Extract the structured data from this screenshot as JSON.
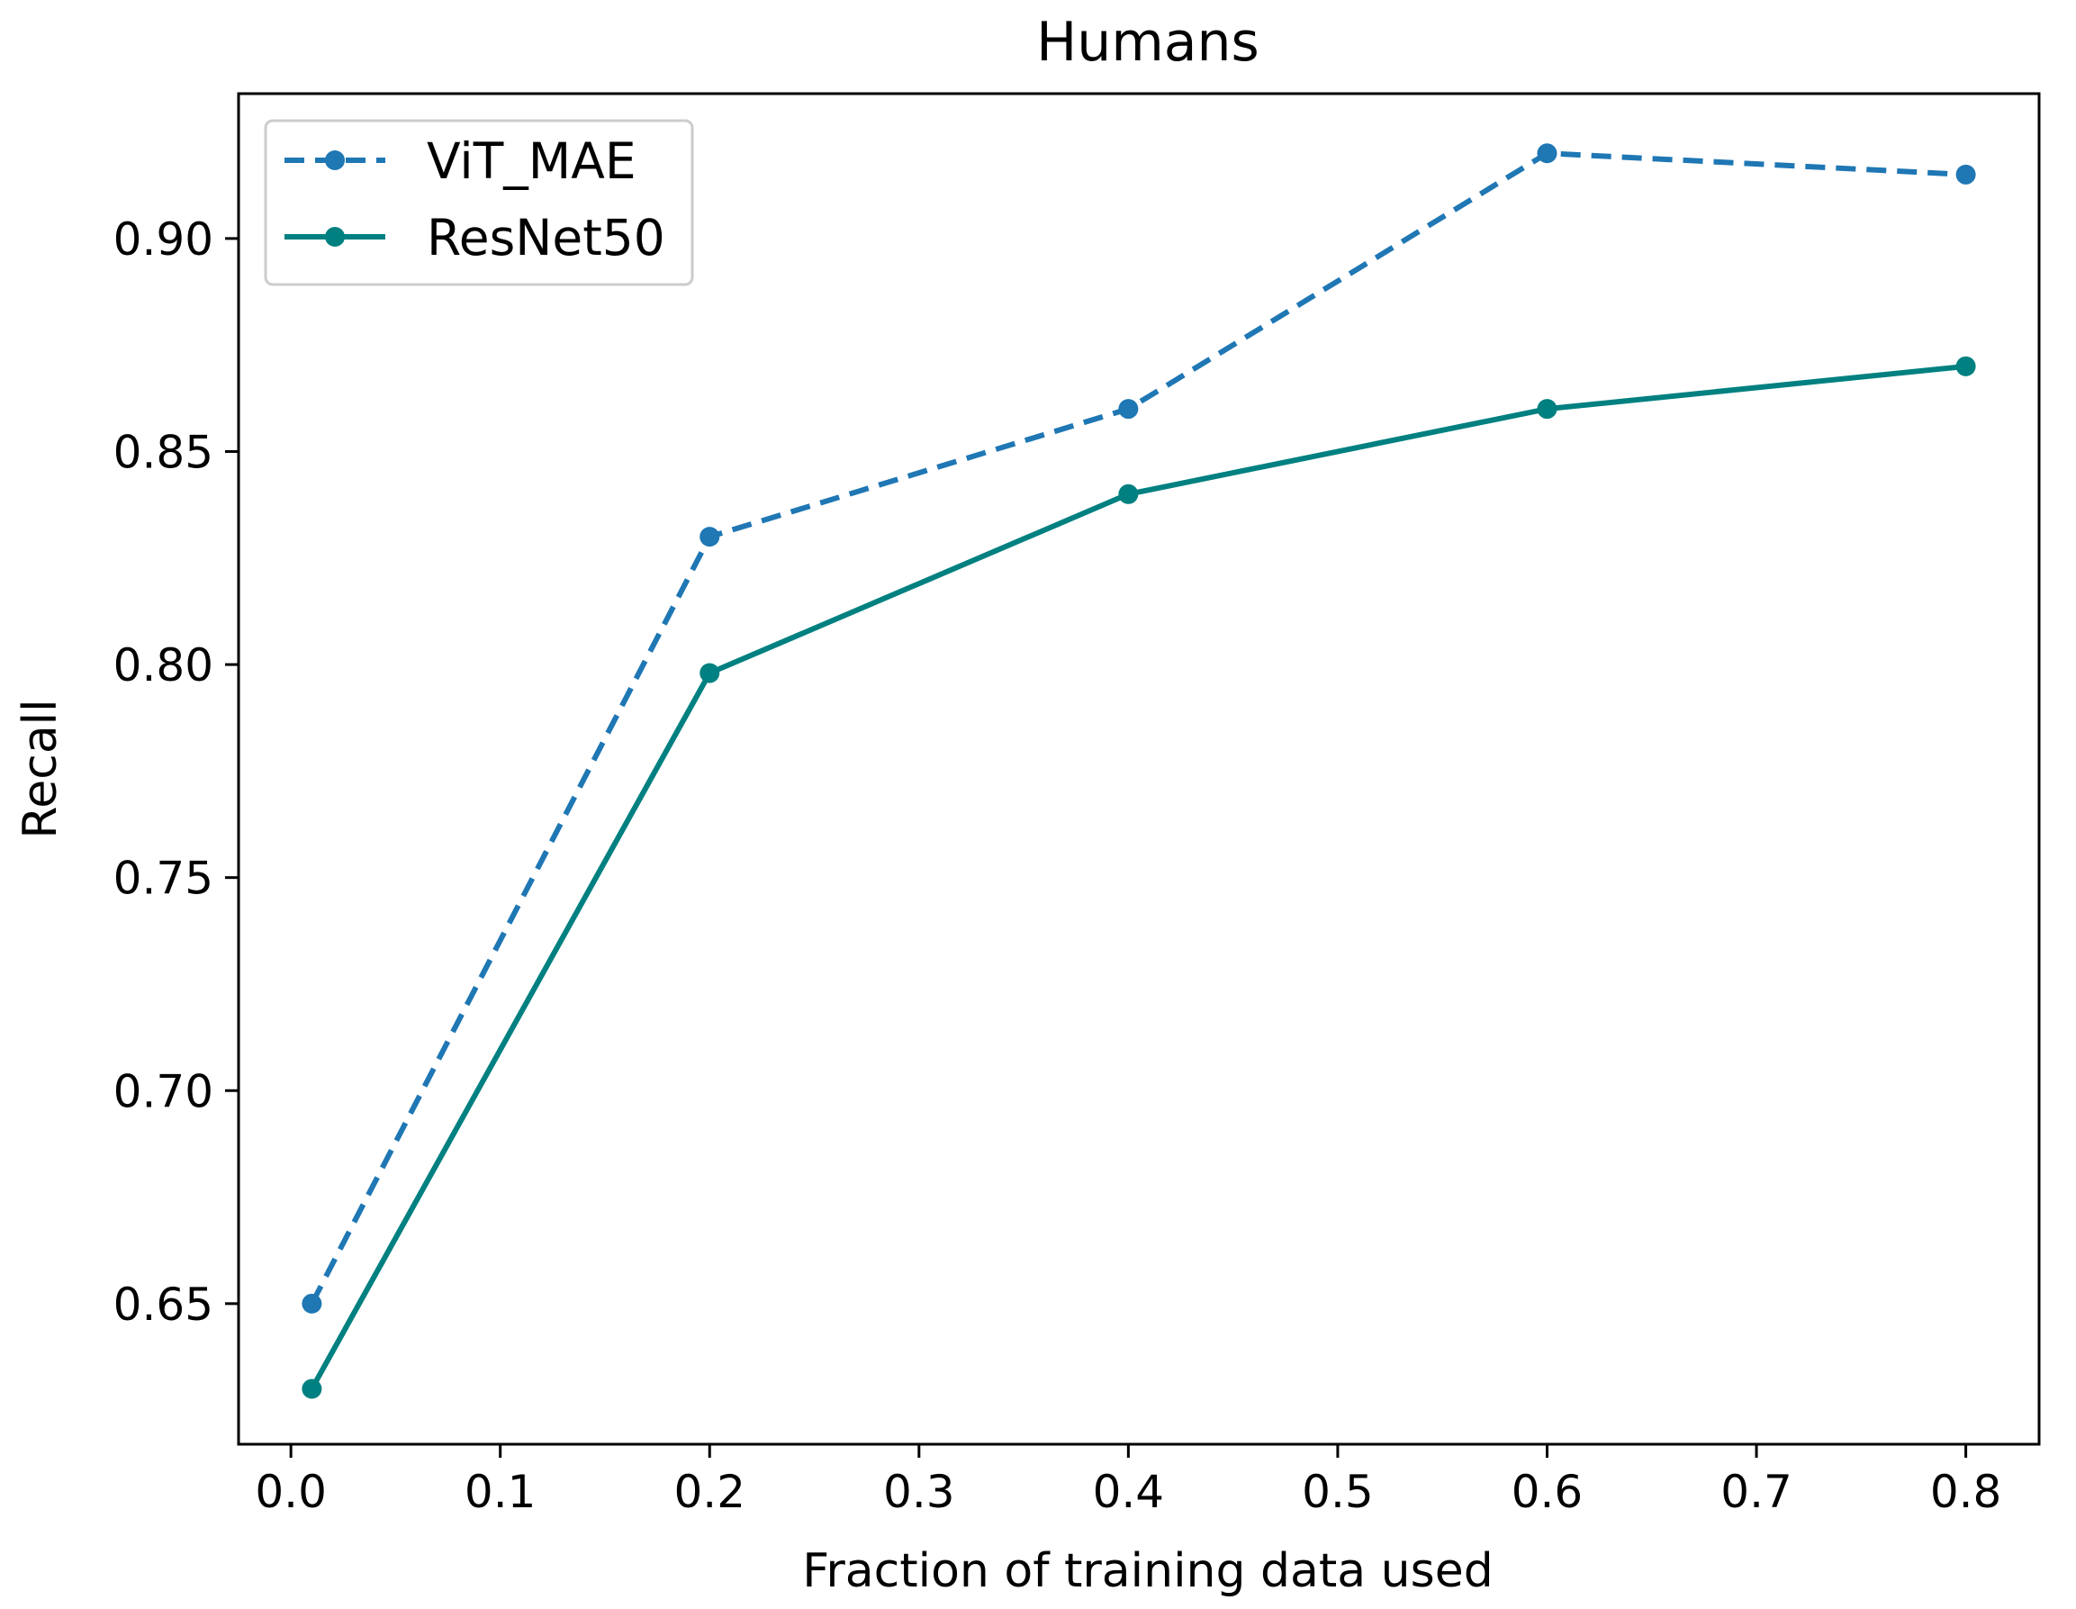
{
  "chart_data": {
    "type": "line",
    "title": "Humans",
    "xlabel": "Fraction of training data used",
    "ylabel": "Recall",
    "xlim": [
      -0.025,
      0.835
    ],
    "ylim": [
      0.617,
      0.934
    ],
    "xticks": [
      0.0,
      0.1,
      0.2,
      0.3,
      0.4,
      0.5,
      0.6,
      0.7,
      0.8
    ],
    "xtick_labels": [
      "0.0",
      "0.1",
      "0.2",
      "0.3",
      "0.4",
      "0.5",
      "0.6",
      "0.7",
      "0.8"
    ],
    "yticks": [
      0.65,
      0.7,
      0.75,
      0.8,
      0.85,
      0.9
    ],
    "ytick_labels": [
      "0.65",
      "0.70",
      "0.75",
      "0.80",
      "0.85",
      "0.90"
    ],
    "grid": false,
    "legend_position": "top-left",
    "series": [
      {
        "name": "ViT_MAE",
        "color": "#1f77b4",
        "line_style": "dashed",
        "marker": "circle",
        "x": [
          0.01,
          0.2,
          0.4,
          0.6,
          0.8
        ],
        "y": [
          0.65,
          0.83,
          0.86,
          0.92,
          0.915
        ]
      },
      {
        "name": "ResNet50",
        "color": "#008080",
        "line_style": "solid",
        "marker": "circle",
        "x": [
          0.01,
          0.2,
          0.4,
          0.6,
          0.8
        ],
        "y": [
          0.63,
          0.798,
          0.84,
          0.86,
          0.87
        ]
      }
    ]
  }
}
